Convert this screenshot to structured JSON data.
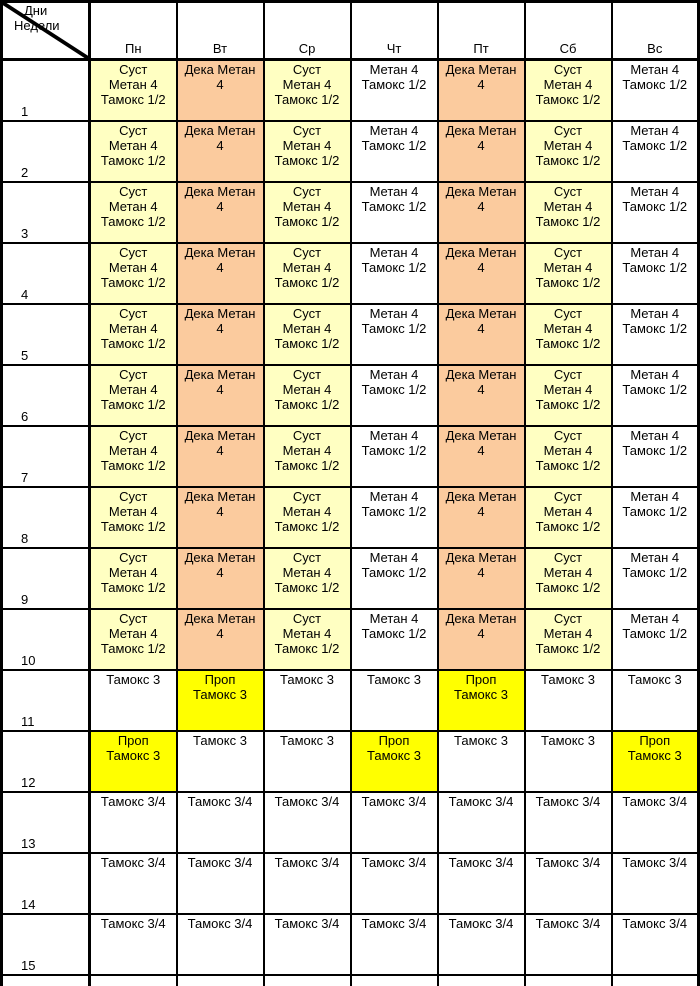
{
  "corner": {
    "line1": "Дни",
    "line2": "Недели"
  },
  "day_headers": [
    "Пн",
    "Вт",
    "Ср",
    "Чт",
    "Пт",
    "Сб",
    "Вс"
  ],
  "colors": {
    "pale_yellow": "#FFFFC2",
    "pale_orange": "#FBCB9E",
    "bright_yellow": "#FFFF00",
    "white": "#FFFFFF",
    "grid": "#000000",
    "text": "#000000"
  },
  "weeks": [
    {
      "num": "1",
      "cells": [
        {
          "bg": "y",
          "lines": [
            "Суст",
            "Метан 4",
            "Тамокс 1/2"
          ]
        },
        {
          "bg": "o",
          "lines": [
            "Дека Метан",
            "4"
          ]
        },
        {
          "bg": "y",
          "lines": [
            "Суст",
            "Метан 4",
            "Тамокс 1/2"
          ]
        },
        {
          "bg": "w",
          "lines": [
            "Метан 4",
            "Тамокс 1/2"
          ]
        },
        {
          "bg": "o",
          "lines": [
            "Дека Метан",
            "4"
          ]
        },
        {
          "bg": "y",
          "lines": [
            "Суст",
            "Метан 4",
            "Тамокс 1/2"
          ]
        },
        {
          "bg": "w",
          "lines": [
            "Метан 4",
            "Тамокс 1/2"
          ]
        }
      ]
    },
    {
      "num": "2",
      "cells": [
        {
          "bg": "y",
          "lines": [
            "Суст",
            "Метан 4",
            "Тамокс 1/2"
          ]
        },
        {
          "bg": "o",
          "lines": [
            "Дека Метан",
            "4"
          ]
        },
        {
          "bg": "y",
          "lines": [
            "Суст",
            "Метан 4",
            "Тамокс 1/2"
          ]
        },
        {
          "bg": "w",
          "lines": [
            "Метан 4",
            "Тамокс 1/2"
          ]
        },
        {
          "bg": "o",
          "lines": [
            "Дека Метан",
            "4"
          ]
        },
        {
          "bg": "y",
          "lines": [
            "Суст",
            "Метан 4",
            "Тамокс 1/2"
          ]
        },
        {
          "bg": "w",
          "lines": [
            "Метан 4",
            "Тамокс 1/2"
          ]
        }
      ]
    },
    {
      "num": "3",
      "cells": [
        {
          "bg": "y",
          "lines": [
            "Суст",
            "Метан 4",
            "Тамокс 1/2"
          ]
        },
        {
          "bg": "o",
          "lines": [
            "Дека Метан",
            "4"
          ]
        },
        {
          "bg": "y",
          "lines": [
            "Суст",
            "Метан 4",
            "Тамокс 1/2"
          ]
        },
        {
          "bg": "w",
          "lines": [
            "Метан 4",
            "Тамокс 1/2"
          ]
        },
        {
          "bg": "o",
          "lines": [
            "Дека Метан",
            "4"
          ]
        },
        {
          "bg": "y",
          "lines": [
            "Суст",
            "Метан 4",
            "Тамокс 1/2"
          ]
        },
        {
          "bg": "w",
          "lines": [
            "Метан 4",
            "Тамокс 1/2"
          ]
        }
      ]
    },
    {
      "num": "4",
      "cells": [
        {
          "bg": "y",
          "lines": [
            "Суст",
            "Метан 4",
            "Тамокс 1/2"
          ]
        },
        {
          "bg": "o",
          "lines": [
            "Дека Метан",
            "4"
          ]
        },
        {
          "bg": "y",
          "lines": [
            "Суст",
            "Метан 4",
            "Тамокс 1/2"
          ]
        },
        {
          "bg": "w",
          "lines": [
            "Метан 4",
            "Тамокс 1/2"
          ]
        },
        {
          "bg": "o",
          "lines": [
            "Дека Метан",
            "4"
          ]
        },
        {
          "bg": "y",
          "lines": [
            "Суст",
            "Метан 4",
            "Тамокс 1/2"
          ]
        },
        {
          "bg": "w",
          "lines": [
            "Метан 4",
            "Тамокс 1/2"
          ]
        }
      ]
    },
    {
      "num": "5",
      "cells": [
        {
          "bg": "y",
          "lines": [
            "Суст",
            "Метан 4",
            "Тамокс 1/2"
          ]
        },
        {
          "bg": "o",
          "lines": [
            "Дека Метан",
            "4"
          ]
        },
        {
          "bg": "y",
          "lines": [
            "Суст",
            "Метан 4",
            "Тамокс 1/2"
          ]
        },
        {
          "bg": "w",
          "lines": [
            "Метан 4",
            "Тамокс 1/2"
          ]
        },
        {
          "bg": "o",
          "lines": [
            "Дека Метан",
            "4"
          ]
        },
        {
          "bg": "y",
          "lines": [
            "Суст",
            "Метан 4",
            "Тамокс 1/2"
          ]
        },
        {
          "bg": "w",
          "lines": [
            "Метан 4",
            "Тамокс 1/2"
          ]
        }
      ]
    },
    {
      "num": "6",
      "cells": [
        {
          "bg": "y",
          "lines": [
            "Суст",
            "Метан 4",
            "Тамокс 1/2"
          ]
        },
        {
          "bg": "o",
          "lines": [
            "Дека Метан",
            "4"
          ]
        },
        {
          "bg": "y",
          "lines": [
            "Суст",
            "Метан 4",
            "Тамокс 1/2"
          ]
        },
        {
          "bg": "w",
          "lines": [
            "Метан 4",
            "Тамокс 1/2"
          ]
        },
        {
          "bg": "o",
          "lines": [
            "Дека Метан",
            "4"
          ]
        },
        {
          "bg": "y",
          "lines": [
            "Суст",
            "Метан 4",
            "Тамокс 1/2"
          ]
        },
        {
          "bg": "w",
          "lines": [
            "Метан 4",
            "Тамокс 1/2"
          ]
        }
      ]
    },
    {
      "num": "7",
      "cells": [
        {
          "bg": "y",
          "lines": [
            "Суст",
            "Метан 4",
            "Тамокс 1/2"
          ]
        },
        {
          "bg": "o",
          "lines": [
            "Дека Метан",
            "4"
          ]
        },
        {
          "bg": "y",
          "lines": [
            "Суст",
            "Метан 4",
            "Тамокс 1/2"
          ]
        },
        {
          "bg": "w",
          "lines": [
            "Метан 4",
            "Тамокс 1/2"
          ]
        },
        {
          "bg": "o",
          "lines": [
            "Дека Метан",
            "4"
          ]
        },
        {
          "bg": "y",
          "lines": [
            "Суст",
            "Метан 4",
            "Тамокс 1/2"
          ]
        },
        {
          "bg": "w",
          "lines": [
            "Метан 4",
            "Тамокс 1/2"
          ]
        }
      ]
    },
    {
      "num": "8",
      "cells": [
        {
          "bg": "y",
          "lines": [
            "Суст",
            "Метан 4",
            "Тамокс 1/2"
          ]
        },
        {
          "bg": "o",
          "lines": [
            "Дека Метан",
            "4"
          ]
        },
        {
          "bg": "y",
          "lines": [
            "Суст",
            "Метан 4",
            "Тамокс 1/2"
          ]
        },
        {
          "bg": "w",
          "lines": [
            "Метан 4",
            "Тамокс 1/2"
          ]
        },
        {
          "bg": "o",
          "lines": [
            "Дека Метан",
            "4"
          ]
        },
        {
          "bg": "y",
          "lines": [
            "Суст",
            "Метан 4",
            "Тамокс 1/2"
          ]
        },
        {
          "bg": "w",
          "lines": [
            "Метан 4",
            "Тамокс 1/2"
          ]
        }
      ]
    },
    {
      "num": "9",
      "cells": [
        {
          "bg": "y",
          "lines": [
            "Суст",
            "Метан 4",
            "Тамокс 1/2"
          ]
        },
        {
          "bg": "o",
          "lines": [
            "Дека Метан",
            "4"
          ]
        },
        {
          "bg": "y",
          "lines": [
            "Суст",
            "Метан 4",
            "Тамокс 1/2"
          ]
        },
        {
          "bg": "w",
          "lines": [
            "Метан 4",
            "Тамокс 1/2"
          ]
        },
        {
          "bg": "o",
          "lines": [
            "Дека Метан",
            "4"
          ]
        },
        {
          "bg": "y",
          "lines": [
            "Суст",
            "Метан 4",
            "Тамокс 1/2"
          ]
        },
        {
          "bg": "w",
          "lines": [
            "Метан 4",
            "Тамокс 1/2"
          ]
        }
      ]
    },
    {
      "num": "10",
      "cells": [
        {
          "bg": "y",
          "lines": [
            "Суст",
            "Метан 4",
            "Тамокс 1/2"
          ]
        },
        {
          "bg": "o",
          "lines": [
            "Дека Метан",
            "4"
          ]
        },
        {
          "bg": "y",
          "lines": [
            "Суст",
            "Метан 4",
            "Тамокс 1/2"
          ]
        },
        {
          "bg": "w",
          "lines": [
            "Метан 4",
            "Тамокс 1/2"
          ]
        },
        {
          "bg": "o",
          "lines": [
            "Дека Метан",
            "4"
          ]
        },
        {
          "bg": "y",
          "lines": [
            "Суст",
            "Метан 4",
            "Тамокс 1/2"
          ]
        },
        {
          "bg": "w",
          "lines": [
            "Метан 4",
            "Тамокс 1/2"
          ]
        }
      ]
    },
    {
      "num": "11",
      "cells": [
        {
          "bg": "w",
          "lines": [
            "Тамокс 3"
          ]
        },
        {
          "bg": "Y",
          "lines": [
            "Проп",
            "Тамокс 3"
          ]
        },
        {
          "bg": "w",
          "lines": [
            "Тамокс 3"
          ]
        },
        {
          "bg": "w",
          "lines": [
            "Тамокс 3"
          ]
        },
        {
          "bg": "Y",
          "lines": [
            "Проп",
            "Тамокс 3"
          ]
        },
        {
          "bg": "w",
          "lines": [
            "Тамокс 3"
          ]
        },
        {
          "bg": "w",
          "lines": [
            "Тамокс 3"
          ]
        }
      ]
    },
    {
      "num": "12",
      "cells": [
        {
          "bg": "Y",
          "lines": [
            "Проп",
            "Тамокс 3"
          ]
        },
        {
          "bg": "w",
          "lines": [
            "Тамокс 3"
          ]
        },
        {
          "bg": "w",
          "lines": [
            "Тамокс 3"
          ]
        },
        {
          "bg": "Y",
          "lines": [
            "Проп",
            "Тамокс 3"
          ]
        },
        {
          "bg": "w",
          "lines": [
            "Тамокс 3"
          ]
        },
        {
          "bg": "w",
          "lines": [
            "Тамокс 3"
          ]
        },
        {
          "bg": "Y",
          "lines": [
            "Проп",
            "Тамокс 3"
          ]
        }
      ]
    },
    {
      "num": "13",
      "cells": [
        {
          "bg": "w",
          "lines": [
            "Тамокс 3/4"
          ]
        },
        {
          "bg": "w",
          "lines": [
            "Тамокс 3/4"
          ]
        },
        {
          "bg": "w",
          "lines": [
            "Тамокс 3/4"
          ]
        },
        {
          "bg": "w",
          "lines": [
            "Тамокс 3/4"
          ]
        },
        {
          "bg": "w",
          "lines": [
            "Тамокс 3/4"
          ]
        },
        {
          "bg": "w",
          "lines": [
            "Тамокс 3/4"
          ]
        },
        {
          "bg": "w",
          "lines": [
            "Тамокс 3/4"
          ]
        }
      ]
    },
    {
      "num": "14",
      "cells": [
        {
          "bg": "w",
          "lines": [
            "Тамокс 3/4"
          ]
        },
        {
          "bg": "w",
          "lines": [
            "Тамокс 3/4"
          ]
        },
        {
          "bg": "w",
          "lines": [
            "Тамокс 3/4"
          ]
        },
        {
          "bg": "w",
          "lines": [
            "Тамокс 3/4"
          ]
        },
        {
          "bg": "w",
          "lines": [
            "Тамокс 3/4"
          ]
        },
        {
          "bg": "w",
          "lines": [
            "Тамокс 3/4"
          ]
        },
        {
          "bg": "w",
          "lines": [
            "Тамокс 3/4"
          ]
        }
      ]
    },
    {
      "num": "15",
      "cells": [
        {
          "bg": "w",
          "lines": [
            "Тамокс 3/4"
          ]
        },
        {
          "bg": "w",
          "lines": [
            "Тамокс 3/4"
          ]
        },
        {
          "bg": "w",
          "lines": [
            "Тамокс 3/4"
          ]
        },
        {
          "bg": "w",
          "lines": [
            "Тамокс 3/4"
          ]
        },
        {
          "bg": "w",
          "lines": [
            "Тамокс 3/4"
          ]
        },
        {
          "bg": "w",
          "lines": [
            "Тамокс 3/4"
          ]
        },
        {
          "bg": "w",
          "lines": [
            "Тамокс 3/4"
          ]
        }
      ]
    },
    {
      "num": "",
      "cells": [
        {
          "bg": "w",
          "lines": []
        },
        {
          "bg": "w",
          "lines": []
        },
        {
          "bg": "w",
          "lines": []
        },
        {
          "bg": "w",
          "lines": []
        },
        {
          "bg": "w",
          "lines": []
        },
        {
          "bg": "w",
          "lines": []
        },
        {
          "bg": "w",
          "lines": []
        }
      ]
    }
  ]
}
